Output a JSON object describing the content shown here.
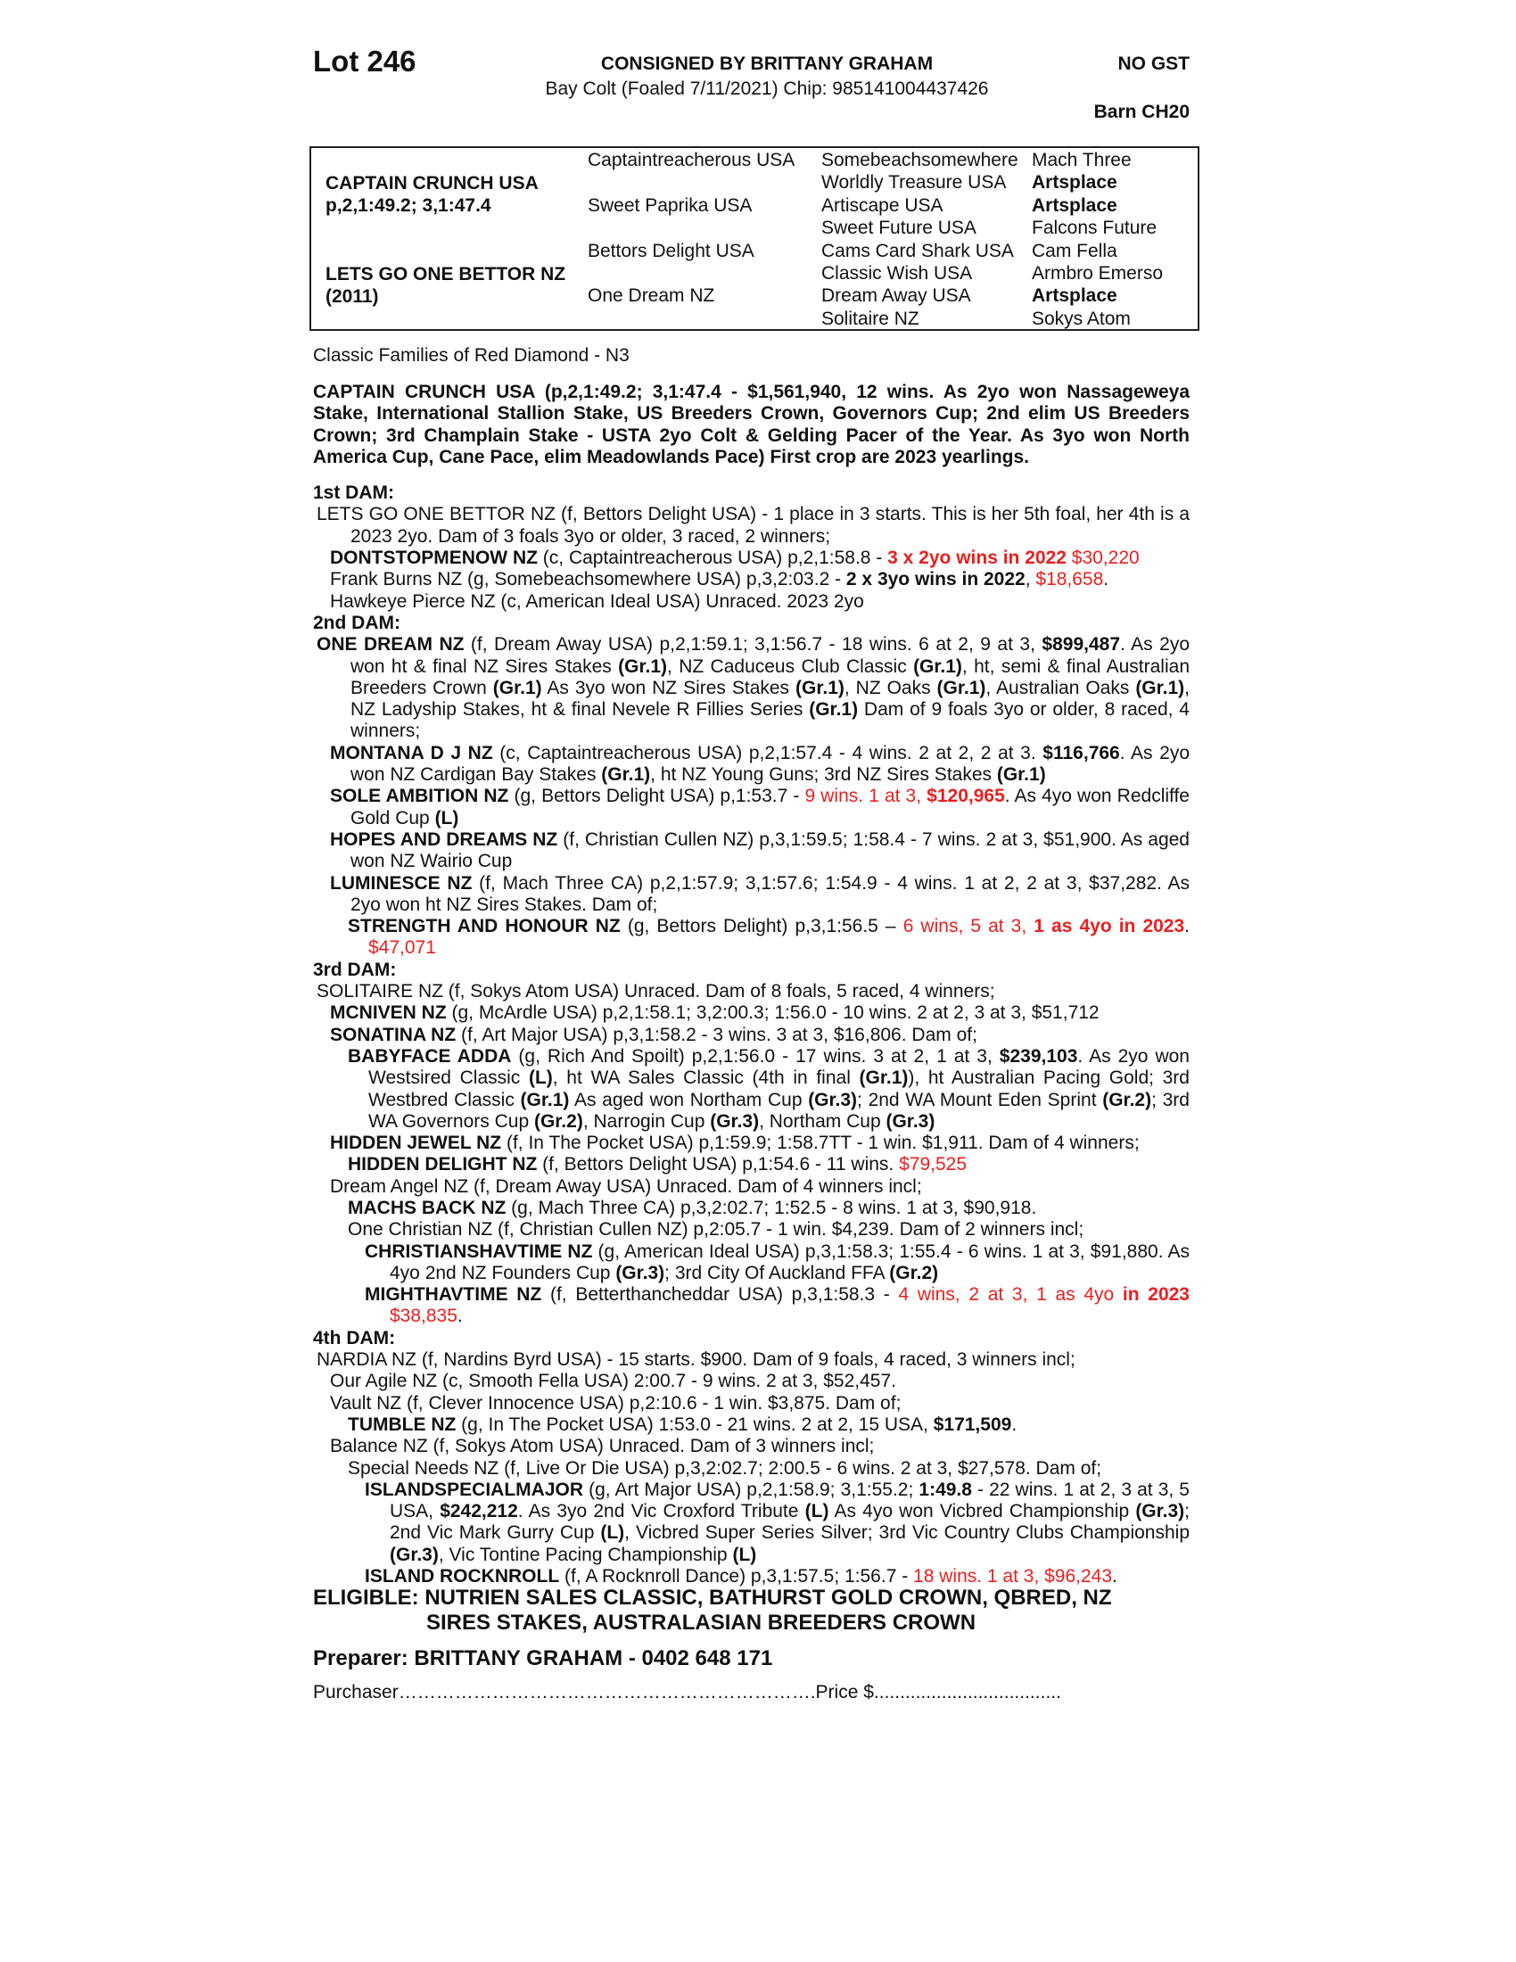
{
  "header": {
    "lot": "Lot 246",
    "consigned": "CONSIGNED BY BRITTANY GRAHAM",
    "gst": "NO GST",
    "description": "Bay Colt (Foaled 7/11/2021) Chip: 985141004437426",
    "barn": "Barn CH20"
  },
  "pedigree": {
    "sire": "CAPTAIN CRUNCH USA",
    "sire_record": "p,2,1:49.2; 3,1:47.4",
    "dam": "LETS GO ONE BETTOR NZ",
    "dam_year": "(2011)",
    "gen2": [
      "Captaintreacherous USA",
      "Sweet Paprika USA",
      "Bettors Delight USA",
      "One Dream NZ"
    ],
    "gen3": [
      "Somebeachsomewhere",
      "Worldly Treasure USA",
      "Artiscape USA",
      "Sweet Future USA",
      "Cams Card Shark USA",
      "Classic Wish USA",
      "Dream Away USA",
      "Solitaire NZ"
    ],
    "gen4": [
      {
        "t": "Mach Three",
        "b": false
      },
      {
        "t": "Artsplace",
        "b": true
      },
      {
        "t": "Artsplace",
        "b": true
      },
      {
        "t": "Falcons Future",
        "b": false
      },
      {
        "t": "Cam Fella",
        "b": false
      },
      {
        "t": "Armbro Emerso",
        "b": false
      },
      {
        "t": "Artsplace",
        "b": true
      },
      {
        "t": "Sokys Atom",
        "b": false
      }
    ]
  },
  "family": "Classic Families of Red Diamond - N3",
  "sire_summary": "CAPTAIN CRUNCH USA (p,2,1:49.2; 3,1:47.4 - $1,561,940, 12 wins. As 2yo won Nassageweya Stake, International Stallion Stake, US Breeders Crown, Governors Cup; 2nd elim US Breeders Crown; 3rd Champlain Stake - USTA 2yo Colt & Gelding Pacer of the Year. As 3yo won North America Cup, Cane Pace, elim Meadowlands Pace) First crop are 2023 yearlings.",
  "dams": [
    {
      "heading": "1st DAM:",
      "entries": [
        {
          "lvl": 0,
          "seg": [
            [
              "LETS GO ONE BETTOR NZ (f, Bettors Delight USA) - 1 place in 3 starts. This is her 5th foal, her 4th is a 2023 2yo. Dam of 3 foals 3yo or older, 3 raced, 2 winners;",
              ""
            ]
          ]
        },
        {
          "lvl": 1,
          "seg": [
            [
              "DONTSTOPMENOW NZ",
              "b"
            ],
            [
              " (c, Captaintreacherous USA) p,2,1:58.8 - ",
              ""
            ],
            [
              "3 x 2yo wins in 2022",
              "br"
            ],
            [
              " $30,220",
              "r"
            ]
          ]
        },
        {
          "lvl": 1,
          "seg": [
            [
              "Frank Burns NZ (g, Somebeachsomewhere USA) p,3,2:03.2 - ",
              ""
            ],
            [
              "2 x 3yo wins in 2022",
              "b"
            ],
            [
              ", ",
              ""
            ],
            [
              "$18,658",
              "r"
            ],
            [
              ".",
              ""
            ]
          ]
        },
        {
          "lvl": 1,
          "seg": [
            [
              "Hawkeye Pierce NZ (c, American Ideal USA) Unraced. 2023 2yo",
              ""
            ]
          ]
        }
      ]
    },
    {
      "heading": "2nd DAM:",
      "entries": [
        {
          "lvl": 0,
          "seg": [
            [
              "ONE DREAM NZ",
              "b"
            ],
            [
              " (f, Dream Away USA) p,2,1:59.1; 3,1:56.7 - 18 wins. 6 at 2, 9 at 3, ",
              ""
            ],
            [
              "$899,487",
              "b"
            ],
            [
              ". As 2yo won ht & final NZ Sires Stakes ",
              ""
            ],
            [
              "(Gr.1)",
              "b"
            ],
            [
              ", NZ Caduceus Club Classic ",
              ""
            ],
            [
              "(Gr.1)",
              "b"
            ],
            [
              ", ht, semi & final Australian Breeders Crown ",
              ""
            ],
            [
              "(Gr.1)",
              "b"
            ],
            [
              " As 3yo won NZ Sires Stakes ",
              ""
            ],
            [
              "(Gr.1)",
              "b"
            ],
            [
              ", NZ Oaks ",
              ""
            ],
            [
              "(Gr.1)",
              "b"
            ],
            [
              ", Australian Oaks ",
              ""
            ],
            [
              "(Gr.1)",
              "b"
            ],
            [
              ", NZ Ladyship Stakes, ht & final Nevele R Fillies Series ",
              ""
            ],
            [
              "(Gr.1)",
              "b"
            ],
            [
              " Dam of 9 foals 3yo or older, 8 raced, 4 winners;",
              ""
            ]
          ]
        },
        {
          "lvl": 1,
          "seg": [
            [
              "MONTANA D J NZ",
              "b"
            ],
            [
              " (c, Captaintreacherous USA) p,2,1:57.4 - 4 wins. 2 at 2, 2 at 3. ",
              ""
            ],
            [
              "$116,766",
              "b"
            ],
            [
              ". As 2yo won NZ Cardigan Bay Stakes ",
              ""
            ],
            [
              "(Gr.1)",
              "b"
            ],
            [
              ", ht NZ Young Guns; 3rd NZ Sires Stakes ",
              ""
            ],
            [
              "(Gr.1)",
              "b"
            ]
          ]
        },
        {
          "lvl": 1,
          "seg": [
            [
              "SOLE AMBITION NZ",
              "b"
            ],
            [
              " (g, Bettors Delight USA) p,1:53.7 - ",
              ""
            ],
            [
              "9 wins. 1 at 3, ",
              "r"
            ],
            [
              "$120,965",
              "br"
            ],
            [
              ". As 4yo won Redcliffe Gold Cup ",
              ""
            ],
            [
              "(L)",
              "b"
            ]
          ]
        },
        {
          "lvl": 1,
          "seg": [
            [
              "HOPES AND DREAMS NZ",
              "b"
            ],
            [
              " (f, Christian Cullen NZ) p,3,1:59.5; 1:58.4 - 7 wins. 2 at 3, $51,900. As aged won NZ Wairio Cup",
              ""
            ]
          ]
        },
        {
          "lvl": 1,
          "seg": [
            [
              "LUMINESCE NZ",
              "b"
            ],
            [
              " (f, Mach Three CA) p,2,1:57.9; 3,1:57.6; 1:54.9 - 4 wins. 1 at 2, 2 at 3, $37,282. As 2yo won ht NZ Sires Stakes. Dam of;",
              ""
            ]
          ]
        },
        {
          "lvl": 2,
          "seg": [
            [
              "STRENGTH AND HONOUR NZ",
              "b"
            ],
            [
              " (g, Bettors Delight) p,3,1:56.5 – ",
              ""
            ],
            [
              "6 wins, 5 at 3, ",
              "r"
            ],
            [
              "1 as 4yo in 2023",
              "br"
            ],
            [
              ". ",
              ""
            ],
            [
              "$47,071",
              "r"
            ]
          ]
        }
      ]
    },
    {
      "heading": "3rd DAM:",
      "entries": [
        {
          "lvl": 0,
          "seg": [
            [
              "SOLITAIRE NZ (f, Sokys Atom USA) Unraced. Dam of 8 foals, 5 raced, 4 winners;",
              ""
            ]
          ]
        },
        {
          "lvl": 1,
          "seg": [
            [
              "MCNIVEN NZ",
              "b"
            ],
            [
              " (g, McArdle USA) p,2,1:58.1; 3,2:00.3; 1:56.0 - 10 wins. 2 at 2, 3 at 3, $51,712",
              ""
            ]
          ]
        },
        {
          "lvl": 1,
          "seg": [
            [
              "SONATINA NZ",
              "b"
            ],
            [
              " (f, Art Major USA) p,3,1:58.2 - 3 wins. 3 at 3, $16,806. Dam of;",
              ""
            ]
          ]
        },
        {
          "lvl": 2,
          "seg": [
            [
              "BABYFACE ADDA",
              "b"
            ],
            [
              " (g, Rich And Spoilt) p,2,1:56.0 - 17 wins. 3 at 2, 1 at 3, ",
              ""
            ],
            [
              "$239,103",
              "b"
            ],
            [
              ". As 2yo won Westsired Classic ",
              ""
            ],
            [
              "(L)",
              "b"
            ],
            [
              ", ht WA Sales Classic (4th in final ",
              ""
            ],
            [
              "(Gr.1)",
              "b"
            ],
            [
              "), ht Australian Pacing Gold; 3rd Westbred Classic ",
              ""
            ],
            [
              "(Gr.1)",
              "b"
            ],
            [
              " As aged won Northam Cup ",
              ""
            ],
            [
              "(Gr.3)",
              "b"
            ],
            [
              "; 2nd WA Mount Eden Sprint ",
              ""
            ],
            [
              "(Gr.2)",
              "b"
            ],
            [
              "; 3rd WA Governors Cup ",
              ""
            ],
            [
              "(Gr.2)",
              "b"
            ],
            [
              ", Narrogin Cup ",
              ""
            ],
            [
              "(Gr.3)",
              "b"
            ],
            [
              ", Northam Cup ",
              ""
            ],
            [
              "(Gr.3)",
              "b"
            ]
          ]
        },
        {
          "lvl": 1,
          "seg": [
            [
              "HIDDEN JEWEL NZ",
              "b"
            ],
            [
              " (f, In The Pocket USA) p,1:59.9; 1:58.7TT - 1 win. $1,911. Dam of 4 winners;",
              ""
            ]
          ]
        },
        {
          "lvl": 2,
          "seg": [
            [
              "HIDDEN DELIGHT NZ",
              "b"
            ],
            [
              " (f, Bettors Delight USA) p,1:54.6 - 11 wins. ",
              ""
            ],
            [
              "$79,525",
              "r"
            ]
          ]
        },
        {
          "lvl": 1,
          "seg": [
            [
              "Dream Angel NZ (f, Dream Away USA) Unraced. Dam of 4 winners incl;",
              ""
            ]
          ]
        },
        {
          "lvl": 2,
          "seg": [
            [
              "MACHS BACK NZ",
              "b"
            ],
            [
              " (g, Mach Three CA) p,3,2:02.7; 1:52.5 - 8 wins. 1 at 3, $90,918.",
              ""
            ]
          ]
        },
        {
          "lvl": 2,
          "seg": [
            [
              "One Christian NZ (f, Christian Cullen NZ) p,2:05.7 - 1 win. $4,239. Dam of 2 winners incl;",
              ""
            ]
          ]
        },
        {
          "lvl": 3,
          "seg": [
            [
              "CHRISTIANSHAVTIME NZ",
              "b"
            ],
            [
              " (g, American Ideal USA) p,3,1:58.3; 1:55.4 - 6 wins. 1 at 3, $91,880. As 4yo 2nd NZ Founders Cup ",
              ""
            ],
            [
              "(Gr.3)",
              "b"
            ],
            [
              "; 3rd City Of Auckland FFA ",
              ""
            ],
            [
              "(Gr.2)",
              "b"
            ]
          ]
        },
        {
          "lvl": 3,
          "seg": [
            [
              "MIGHTHAVTIME NZ",
              "b"
            ],
            [
              " (f, Betterthancheddar USA) p,3,1:58.3 - ",
              ""
            ],
            [
              "4 wins, 2 at 3, 1 as 4yo ",
              "r"
            ],
            [
              "in 2023",
              "br"
            ],
            [
              " $38,835",
              "r"
            ],
            [
              ".",
              ""
            ]
          ]
        }
      ]
    },
    {
      "heading": "4th DAM:",
      "entries": [
        {
          "lvl": 0,
          "seg": [
            [
              "NARDIA NZ (f, Nardins Byrd USA) - 15 starts. $900. Dam of 9 foals, 4 raced, 3 winners incl;",
              ""
            ]
          ]
        },
        {
          "lvl": 1,
          "seg": [
            [
              "Our Agile NZ (c, Smooth Fella USA) 2:00.7 - 9 wins. 2 at 3, $52,457.",
              ""
            ]
          ]
        },
        {
          "lvl": 1,
          "seg": [
            [
              "Vault NZ (f, Clever Innocence USA) p,2:10.6 - 1 win. $3,875. Dam of;",
              ""
            ]
          ]
        },
        {
          "lvl": 2,
          "seg": [
            [
              "TUMBLE NZ",
              "b"
            ],
            [
              " (g, In The Pocket USA) 1:53.0 - 21 wins. 2 at 2, 15 USA, ",
              ""
            ],
            [
              "$171,509",
              "b"
            ],
            [
              ".",
              ""
            ]
          ]
        },
        {
          "lvl": 1,
          "seg": [
            [
              "Balance NZ (f, Sokys Atom USA) Unraced. Dam of 3 winners incl;",
              ""
            ]
          ]
        },
        {
          "lvl": 2,
          "seg": [
            [
              "Special Needs NZ (f, Live Or Die USA) p,3,2:02.7; 2:00.5 - 6 wins. 2 at 3, $27,578. Dam of;",
              ""
            ]
          ]
        },
        {
          "lvl": 3,
          "seg": [
            [
              "ISLANDSPECIALMAJOR",
              "b"
            ],
            [
              " (g, Art Major USA) p,2,1:58.9; 3,1:55.2; ",
              ""
            ],
            [
              "1:49.8",
              "b"
            ],
            [
              " - 22 wins. 1 at 2, 3 at 3, 5 USA, ",
              ""
            ],
            [
              "$242,212",
              "b"
            ],
            [
              ". As 3yo 2nd Vic Croxford Tribute ",
              ""
            ],
            [
              "(L)",
              "b"
            ],
            [
              " As 4yo won Vicbred Championship ",
              ""
            ],
            [
              "(Gr.3)",
              "b"
            ],
            [
              "; 2nd Vic Mark Gurry Cup ",
              ""
            ],
            [
              "(L)",
              "b"
            ],
            [
              ", Vicbred Super Series Silver; 3rd Vic Country Clubs Championship ",
              ""
            ],
            [
              "(Gr.3)",
              "b"
            ],
            [
              ", Vic Tontine Pacing Championship ",
              ""
            ],
            [
              "(L)",
              "b"
            ]
          ]
        },
        {
          "lvl": 3,
          "seg": [
            [
              "ISLAND ROCKNROLL",
              "b"
            ],
            [
              " (f, A Rocknroll Dance) p,3,1:57.5; 1:56.7 - ",
              ""
            ],
            [
              "18 wins. 1 at 3, $96,243",
              "r"
            ],
            [
              ".",
              ""
            ]
          ]
        }
      ]
    }
  ],
  "eligible": [
    "ELIGIBLE: NUTRIEN SALES CLASSIC, BATHURST GOLD CROWN, QBRED, NZ",
    "SIRES STAKES, AUSTRALASIAN BREEDERS CROWN"
  ],
  "preparer": "Preparer: BRITTANY GRAHAM - 0402 648 171",
  "purchaser": "Purchaser………………………………………………………….Price $....................................",
  "colors": {
    "highlight": "#e8201f",
    "text": "#111111"
  }
}
